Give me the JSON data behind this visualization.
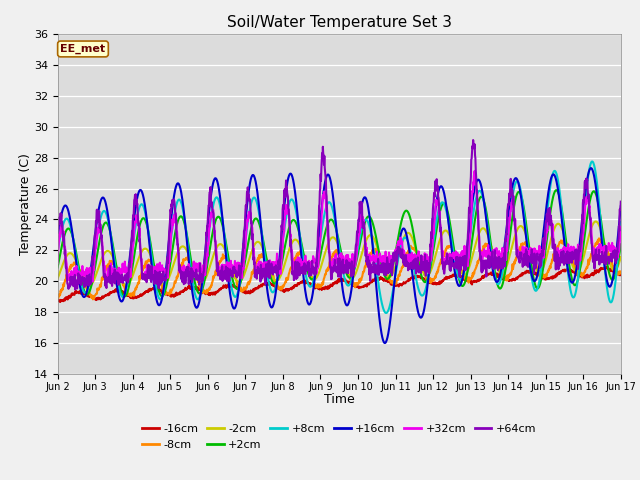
{
  "title": "Soil/Water Temperature Set 3",
  "xlabel": "Time",
  "ylabel": "Temperature (C)",
  "annotation": "EE_met",
  "ylim": [
    14,
    36
  ],
  "yticks": [
    14,
    16,
    18,
    20,
    22,
    24,
    26,
    28,
    30,
    32,
    34,
    36
  ],
  "plot_bg_color": "#dcdcdc",
  "fig_bg_color": "#f0f0f0",
  "series": {
    "-16cm": {
      "color": "#cc0000",
      "lw": 1.5
    },
    "-8cm": {
      "color": "#ff8800",
      "lw": 1.5
    },
    "-2cm": {
      "color": "#cccc00",
      "lw": 1.5
    },
    "+2cm": {
      "color": "#00bb00",
      "lw": 1.5
    },
    "+8cm": {
      "color": "#00cccc",
      "lw": 1.5
    },
    "+16cm": {
      "color": "#0000cc",
      "lw": 1.5
    },
    "+32cm": {
      "color": "#ee00ee",
      "lw": 1.5
    },
    "+64cm": {
      "color": "#8800bb",
      "lw": 1.5
    }
  },
  "xtick_positions": [
    2,
    3,
    4,
    5,
    6,
    7,
    8,
    9,
    10,
    11,
    12,
    13,
    14,
    15,
    16,
    17
  ],
  "xtick_labels": [
    "Jun 2",
    "Jun 3",
    "Jun 4",
    "Jun 5",
    "Jun 6",
    "Jun 7",
    "Jun 8",
    "Jun 9",
    "Jun 10",
    "Jun 11",
    "Jun 12",
    "Jun 13",
    "Jun 14",
    "Jun 15",
    "Jun 16",
    "Jun 17"
  ],
  "x_start": 2,
  "x_end": 17
}
